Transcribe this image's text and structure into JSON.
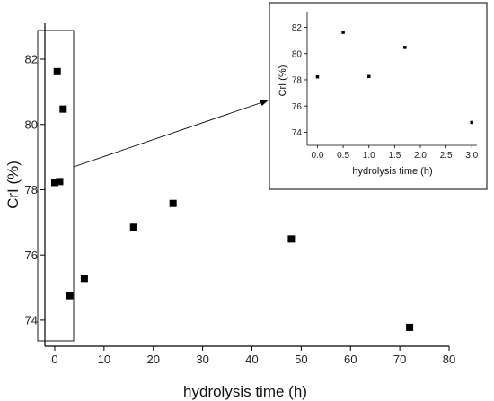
{
  "colors": {
    "marker": "#000000",
    "axis": "#000000",
    "background": "#ffffff"
  },
  "chart_data": [
    {
      "type": "scatter",
      "role": "main",
      "title": "",
      "xlabel": "hydrolysis time (h)",
      "ylabel": "CrI (%)",
      "xlim": [
        -2,
        80
      ],
      "ylim": [
        73.2,
        83.1
      ],
      "xticks": [
        0,
        10,
        20,
        30,
        40,
        50,
        60,
        70,
        80
      ],
      "yticks": [
        74,
        76,
        78,
        80,
        82
      ],
      "series": [
        {
          "marker": "square",
          "x": [
            0,
            0.5,
            1,
            1.7,
            3,
            6,
            16,
            24,
            48,
            72
          ],
          "y": [
            78.22,
            81.62,
            78.25,
            80.47,
            74.75,
            75.28,
            76.85,
            77.58,
            76.49,
            73.78
          ]
        }
      ],
      "grid": false,
      "legend": "none",
      "annotations": [
        "highlight box around x = 0–3 h",
        "arrow from box to inset"
      ]
    },
    {
      "type": "scatter",
      "role": "inset",
      "title": "",
      "xlabel": "hydrolysis time (h)",
      "ylabel": "CrI (%)",
      "xlim": [
        -0.2,
        3.1
      ],
      "ylim": [
        73,
        83.2
      ],
      "xticks": [
        "0.0",
        "0.5",
        "1.0",
        "1.5",
        "2.0",
        "2.5",
        "3.0"
      ],
      "yticks": [
        74,
        76,
        78,
        80,
        82
      ],
      "series": [
        {
          "marker": "square",
          "x": [
            0,
            0.5,
            1,
            1.7,
            3
          ],
          "y": [
            78.22,
            81.62,
            78.25,
            80.47,
            74.75
          ]
        }
      ],
      "grid": false,
      "legend": "none"
    }
  ]
}
